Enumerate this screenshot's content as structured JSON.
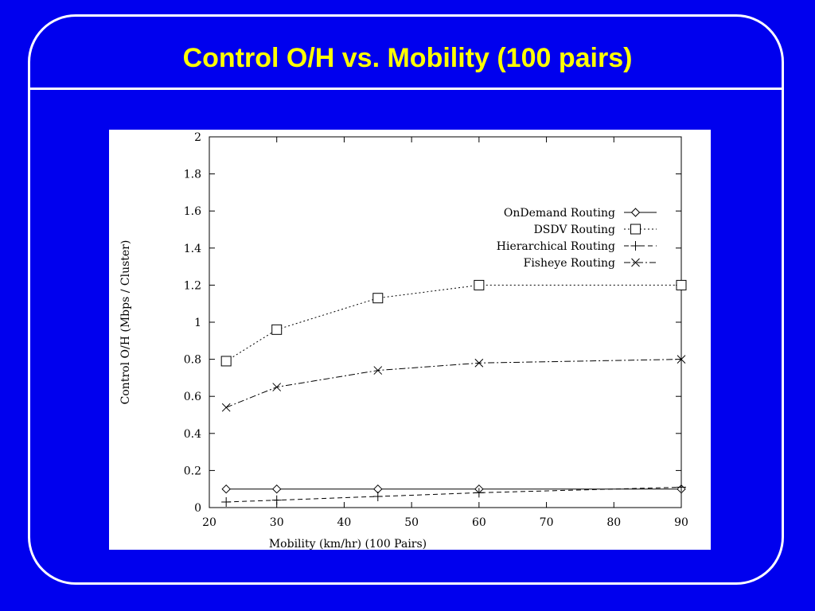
{
  "slide": {
    "title": "Control O/H vs. Mobility (100 pairs)"
  },
  "colors": {
    "background": "#0000ee",
    "title": "#ffff00",
    "frame": "#ffffff",
    "plot_background": "#ffffff"
  },
  "chart_data": {
    "type": "line",
    "title": "",
    "xlabel": "Mobility (km/hr) (100 Pairs)",
    "ylabel": "Control O/H (Mbps / Cluster)",
    "xlim": [
      20,
      90
    ],
    "ylim": [
      0,
      2
    ],
    "x_ticks": [
      20,
      30,
      40,
      50,
      60,
      70,
      80,
      90
    ],
    "y_ticks": [
      0,
      0.2,
      0.4,
      0.6,
      0.8,
      1,
      1.2,
      1.4,
      1.6,
      1.8,
      2
    ],
    "y_tick_labels": [
      "0",
      "0.2",
      "0.4",
      "0.6",
      "0.8",
      "1",
      "1.2",
      "1.4",
      "1.6",
      "1.8",
      "2"
    ],
    "grid": false,
    "legend_position": "top-right",
    "series": [
      {
        "name": "OnDemand Routing",
        "marker": "diamond",
        "dash": "solid",
        "x": [
          22.5,
          30,
          45,
          60,
          90
        ],
        "values": [
          0.1,
          0.1,
          0.1,
          0.1,
          0.1
        ]
      },
      {
        "name": "DSDV Routing",
        "marker": "square",
        "dash": "dotted",
        "x": [
          22.5,
          30,
          45,
          60,
          90
        ],
        "values": [
          0.79,
          0.96,
          1.13,
          1.2,
          1.2
        ]
      },
      {
        "name": "Hierarchical Routing",
        "marker": "plus",
        "dash": "dashed",
        "x": [
          22.5,
          30,
          45,
          60,
          90
        ],
        "values": [
          0.03,
          0.04,
          0.06,
          0.08,
          0.11
        ]
      },
      {
        "name": "Fisheye Routing",
        "marker": "cross",
        "dash": "dashdot",
        "x": [
          22.5,
          30,
          45,
          60,
          90
        ],
        "values": [
          0.54,
          0.65,
          0.74,
          0.78,
          0.8
        ]
      }
    ]
  }
}
